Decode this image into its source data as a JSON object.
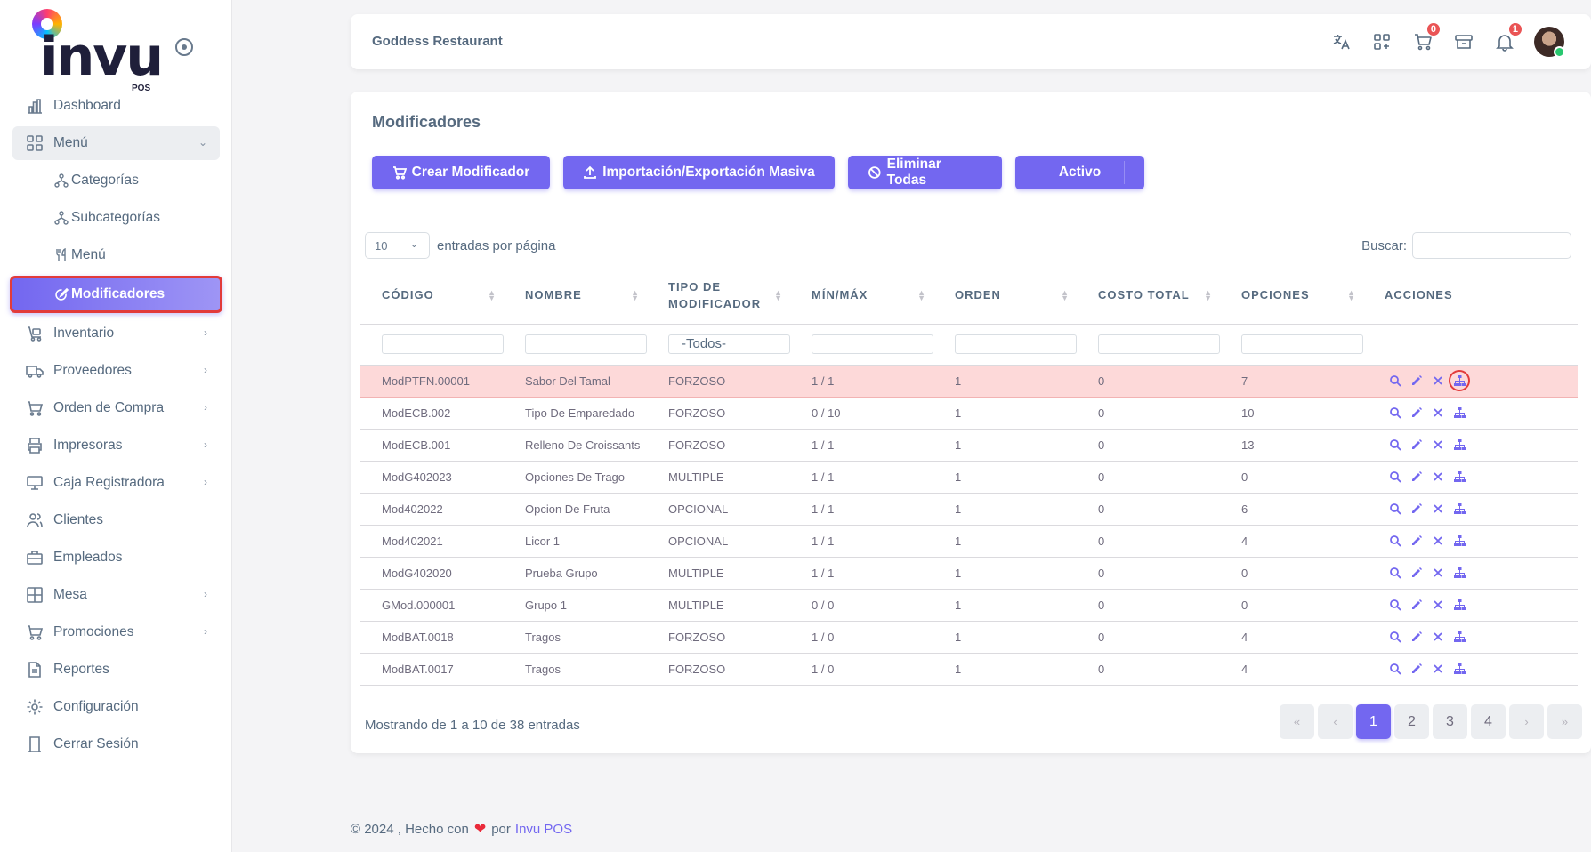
{
  "app": {
    "logo_text": "invu",
    "logo_sub": "POS"
  },
  "sidebar": {
    "items": [
      {
        "label": "Dashboard"
      },
      {
        "label": "Menú"
      },
      {
        "label": "Categorías"
      },
      {
        "label": "Subcategorías"
      },
      {
        "label": "Menú"
      },
      {
        "label": "Modificadores"
      },
      {
        "label": "Inventario"
      },
      {
        "label": "Proveedores"
      },
      {
        "label": "Orden de Compra"
      },
      {
        "label": "Impresoras"
      },
      {
        "label": "Caja Registradora"
      },
      {
        "label": "Clientes"
      },
      {
        "label": "Empleados"
      },
      {
        "label": "Mesa"
      },
      {
        "label": "Promociones"
      },
      {
        "label": "Reportes"
      },
      {
        "label": "Configuración"
      },
      {
        "label": "Cerrar Sesión"
      }
    ]
  },
  "header": {
    "restaurant": "Goddess Restaurant",
    "cart_count": "0",
    "notif_count": "1"
  },
  "main": {
    "title": "Modificadores",
    "buttons": {
      "create": "Crear Modificador",
      "import": "Importación/Exportación Masiva",
      "delete_all": "Eliminar Todas",
      "status": "Activo"
    },
    "page_size": "10",
    "page_size_label": "entradas por página",
    "search_label": "Buscar:",
    "filter_type_value": "-Todos-",
    "columns": [
      "Código",
      "Nombre",
      "Tipo de modificador",
      "Mín/Máx",
      "Orden",
      "Costo Total",
      "Opciones",
      "Acciones"
    ],
    "rows": [
      [
        "ModPTFN.00001",
        "Sabor Del Tamal",
        "FORZOSO",
        "1 / 1",
        "1",
        "0",
        "7"
      ],
      [
        "ModECB.002",
        "Tipo De Emparedado",
        "FORZOSO",
        "0 / 10",
        "1",
        "0",
        "10"
      ],
      [
        "ModECB.001",
        "Relleno De Croissants",
        "FORZOSO",
        "1 / 1",
        "1",
        "0",
        "13"
      ],
      [
        "ModG402023",
        "Opciones De Trago",
        "MULTIPLE",
        "1 / 1",
        "1",
        "0",
        "0"
      ],
      [
        "Mod402022",
        "Opcion De Fruta",
        "OPCIONAL",
        "1 / 1",
        "1",
        "0",
        "6"
      ],
      [
        "Mod402021",
        "Licor 1",
        "OPCIONAL",
        "1 / 1",
        "1",
        "0",
        "4"
      ],
      [
        "ModG402020",
        "Prueba Grupo",
        "MULTIPLE",
        "1 / 1",
        "1",
        "0",
        "0"
      ],
      [
        "GMod.000001",
        "Grupo 1",
        "MULTIPLE",
        "0 / 0",
        "1",
        "0",
        "0"
      ],
      [
        "ModBAT.0018",
        "Tragos",
        "FORZOSO",
        "1 / 0",
        "1",
        "0",
        "4"
      ],
      [
        "ModBAT.0017",
        "Tragos",
        "FORZOSO",
        "1 / 0",
        "1",
        "0",
        "4"
      ]
    ],
    "info": "Mostrando de 1 a 10 de 38 entradas",
    "pagination": [
      "«",
      "‹",
      "1",
      "2",
      "3",
      "4",
      "›",
      "»"
    ]
  },
  "footer": {
    "text": "© 2024 , Hecho con",
    "by": "por",
    "link": "Invu POS"
  },
  "colors": {
    "accent": "#7367f0",
    "highlight_row": "#fdd9d9",
    "badge": "#ea5455"
  }
}
